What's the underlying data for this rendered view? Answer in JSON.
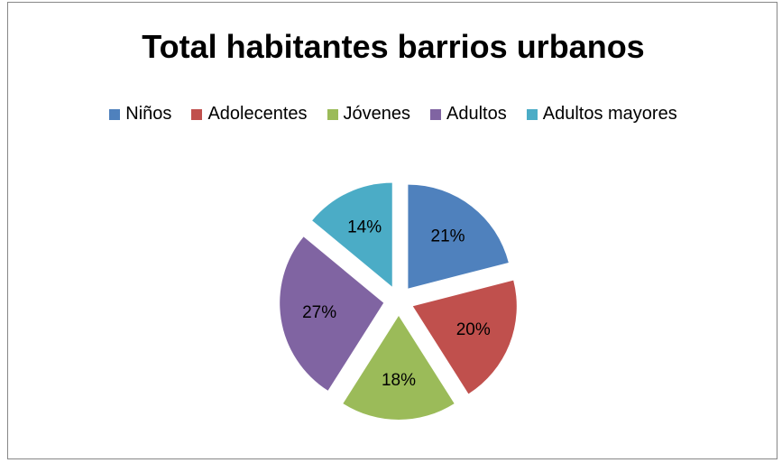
{
  "chart_data": {
    "type": "pie",
    "title": "Total habitantes barrios urbanos",
    "legend_position": "top",
    "exploded": true,
    "categories": [
      "Niños",
      "Adolecentes",
      "Jóvenes",
      "Adultos",
      "Adultos mayores"
    ],
    "values": [
      21,
      20,
      18,
      27,
      14
    ],
    "labels": [
      "21%",
      "20%",
      "18%",
      "27%",
      "14%"
    ],
    "colors": [
      "#4F81BD",
      "#C0504D",
      "#9BBB59",
      "#8064A2",
      "#4BACC6"
    ]
  }
}
